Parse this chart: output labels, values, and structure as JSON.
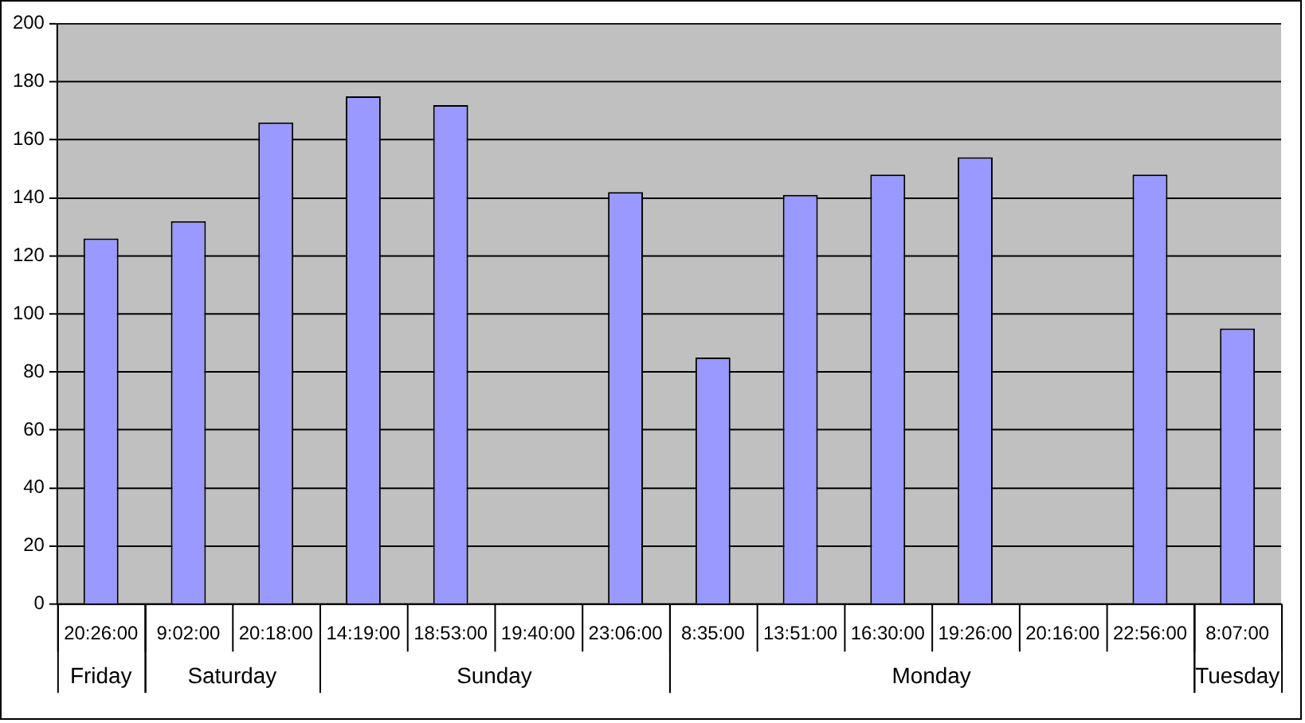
{
  "chart_data": {
    "type": "bar",
    "categories": [
      "20:26:00",
      "9:02:00",
      "20:18:00",
      "14:19:00",
      "18:53:00",
      "19:40:00",
      "23:06:00",
      "8:35:00",
      "13:51:00",
      "16:30:00",
      "19:26:00",
      "20:16:00",
      "22:56:00",
      "8:07:00"
    ],
    "values": [
      126,
      132,
      166,
      175,
      172,
      null,
      142,
      85,
      141,
      148,
      154,
      null,
      148,
      95
    ],
    "color": "#9999ff",
    "ylim": [
      0,
      200
    ],
    "yticks": [
      0,
      20,
      40,
      60,
      80,
      100,
      120,
      140,
      160,
      180,
      200
    ],
    "grid": "y",
    "annotations": [
      "Friday",
      "Saturday",
      "Sunday",
      "Monday",
      "Tuesday"
    ]
  }
}
